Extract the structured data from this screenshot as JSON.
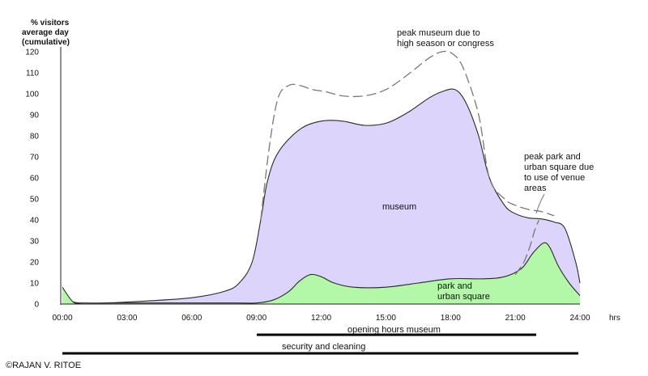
{
  "chart_data": {
    "type": "area",
    "ylabel_lines": [
      "% visitors",
      "average day",
      "(cumulative)"
    ],
    "xlabel": "hrs",
    "ylim": [
      0,
      120
    ],
    "xlim": [
      0,
      24
    ],
    "y_ticks": [
      0,
      10,
      20,
      30,
      40,
      50,
      60,
      70,
      80,
      90,
      100,
      110,
      120
    ],
    "x_ticks": [
      {
        "v": 0,
        "label": "00:00"
      },
      {
        "v": 3,
        "label": "03:00"
      },
      {
        "v": 6,
        "label": "06:00"
      },
      {
        "v": 9,
        "label": "09:00"
      },
      {
        "v": 12,
        "label": "12:00"
      },
      {
        "v": 15,
        "label": "15:00"
      },
      {
        "v": 18,
        "label": "18:00"
      },
      {
        "v": 21,
        "label": "21:00"
      },
      {
        "v": 24,
        "label": "24:00"
      }
    ],
    "series": [
      {
        "name": "museum",
        "color": "#ddd4fb",
        "x": [
          0,
          0.3,
          0.8,
          2,
          4,
          6,
          7.5,
          8.2,
          8.8,
          9.2,
          9.5,
          10,
          11,
          12,
          13,
          14,
          15,
          16,
          17,
          17.6,
          18.2,
          18.7,
          19.3,
          19.8,
          20.5,
          21,
          21.6,
          22.2,
          22.8,
          23.3,
          23.8,
          24
        ],
        "values": [
          5,
          2,
          0.5,
          0.5,
          1.5,
          3,
          6,
          10,
          20,
          40,
          58,
          72,
          83,
          87,
          87,
          85,
          86,
          91,
          98,
          101,
          102,
          96,
          80,
          60,
          47,
          43,
          41,
          40.5,
          39,
          36,
          20,
          10
        ]
      },
      {
        "name": "park and urban square",
        "color": "#b3f8a9",
        "x": [
          0,
          0.5,
          1,
          3,
          6,
          8,
          9,
          9.8,
          10.5,
          11,
          11.5,
          12,
          12.6,
          13.5,
          15,
          16.5,
          18,
          19.5,
          20.5,
          21.3,
          21.8,
          22.3,
          22.6,
          23,
          23.5,
          24
        ],
        "values": [
          8,
          1,
          0.5,
          0.5,
          0.5,
          0.5,
          0.5,
          2,
          6,
          11,
          14,
          13,
          10,
          8,
          8,
          10,
          12,
          12,
          13,
          17,
          24,
          29,
          27,
          18,
          10,
          4
        ]
      },
      {
        "name": "peak museum due to high season or congress",
        "style": "dashed",
        "color": "#777777",
        "x": [
          9.2,
          9.6,
          10,
          10.5,
          11,
          11.6,
          12.2,
          13,
          14,
          15,
          16,
          17,
          17.6,
          18.1,
          18.6,
          19.3,
          19.8,
          20.5,
          21,
          21.6,
          22.2,
          22.8
        ],
        "values": [
          40,
          75,
          98,
          104,
          104,
          102,
          101,
          99,
          99,
          102,
          109,
          117,
          120,
          119,
          112,
          90,
          60,
          50,
          47,
          45,
          44,
          42
        ]
      },
      {
        "name": "peak park and urban square due to use of venue areas",
        "style": "dashed",
        "color": "#777777",
        "x": [
          21,
          21.4,
          21.7,
          21.9,
          22.1
        ],
        "values": [
          14,
          20,
          28,
          35,
          40
        ]
      }
    ],
    "annotations": {
      "museum": "museum",
      "park": [
        "park and",
        "urban square"
      ],
      "peak_museum": [
        "peak museum due to",
        "high season or congress"
      ],
      "peak_park": [
        "peak park and",
        "urban square due",
        "to use of venue",
        "areas"
      ]
    },
    "bars": [
      {
        "label": "opening hours museum",
        "start": 9,
        "end": 22
      },
      {
        "label": "security and cleaning",
        "start": 0,
        "end": 24
      }
    ]
  },
  "credit": "©RAJAN V. RITOE"
}
